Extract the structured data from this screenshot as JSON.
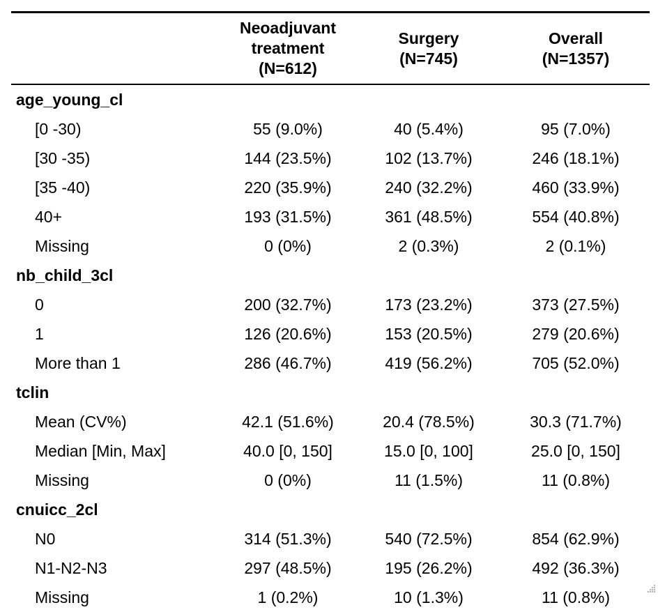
{
  "columns": [
    "",
    "Neoadjuvant treatment (N=612)",
    "Surgery (N=745)",
    "Overall (N=1357)"
  ],
  "header_lines": {
    "c1": [
      "Neoadjuvant",
      "treatment",
      "(N=612)"
    ],
    "c2": [
      "Surgery",
      "(N=745)"
    ],
    "c3": [
      "Overall",
      "(N=1357)"
    ]
  },
  "groups": [
    {
      "name": "age_young_cl",
      "rows": [
        {
          "label": "[0 -30)",
          "values": [
            "55 (9.0%)",
            "40 (5.4%)",
            "95 (7.0%)"
          ]
        },
        {
          "label": "[30 -35)",
          "values": [
            "144 (23.5%)",
            "102 (13.7%)",
            "246 (18.1%)"
          ]
        },
        {
          "label": "[35 -40)",
          "values": [
            "220 (35.9%)",
            "240 (32.2%)",
            "460 (33.9%)"
          ]
        },
        {
          "label": "40+",
          "values": [
            "193 (31.5%)",
            "361 (48.5%)",
            "554 (40.8%)"
          ]
        },
        {
          "label": "Missing",
          "values": [
            "0 (0%)",
            "2 (0.3%)",
            "2 (0.1%)"
          ]
        }
      ]
    },
    {
      "name": "nb_child_3cl",
      "rows": [
        {
          "label": "0",
          "values": [
            "200 (32.7%)",
            "173 (23.2%)",
            "373 (27.5%)"
          ]
        },
        {
          "label": "1",
          "values": [
            "126 (20.6%)",
            "153 (20.5%)",
            "279 (20.6%)"
          ]
        },
        {
          "label": "More than 1",
          "values": [
            "286 (46.7%)",
            "419 (56.2%)",
            "705 (52.0%)"
          ]
        }
      ]
    },
    {
      "name": "tclin",
      "rows": [
        {
          "label": "Mean (CV%)",
          "values": [
            "42.1 (51.6%)",
            "20.4 (78.5%)",
            "30.3 (71.7%)"
          ]
        },
        {
          "label": "Median [Min, Max]",
          "values": [
            "40.0 [0, 150]",
            "15.0 [0, 100]",
            "25.0 [0, 150]"
          ]
        },
        {
          "label": "Missing",
          "values": [
            "0 (0%)",
            "11 (1.5%)",
            "11 (0.8%)"
          ]
        }
      ]
    },
    {
      "name": "cnuicc_2cl",
      "rows": [
        {
          "label": "N0",
          "values": [
            "314 (51.3%)",
            "540 (72.5%)",
            "854 (62.9%)"
          ]
        },
        {
          "label": "N1-N2-N3",
          "values": [
            "297 (48.5%)",
            "195 (26.2%)",
            "492 (36.3%)"
          ]
        },
        {
          "label": "Missing",
          "values": [
            "1 (0.2%)",
            "10 (1.3%)",
            "11 (0.8%)"
          ]
        }
      ]
    }
  ],
  "icons": {
    "resize_grip": "resize-grip-icon"
  }
}
